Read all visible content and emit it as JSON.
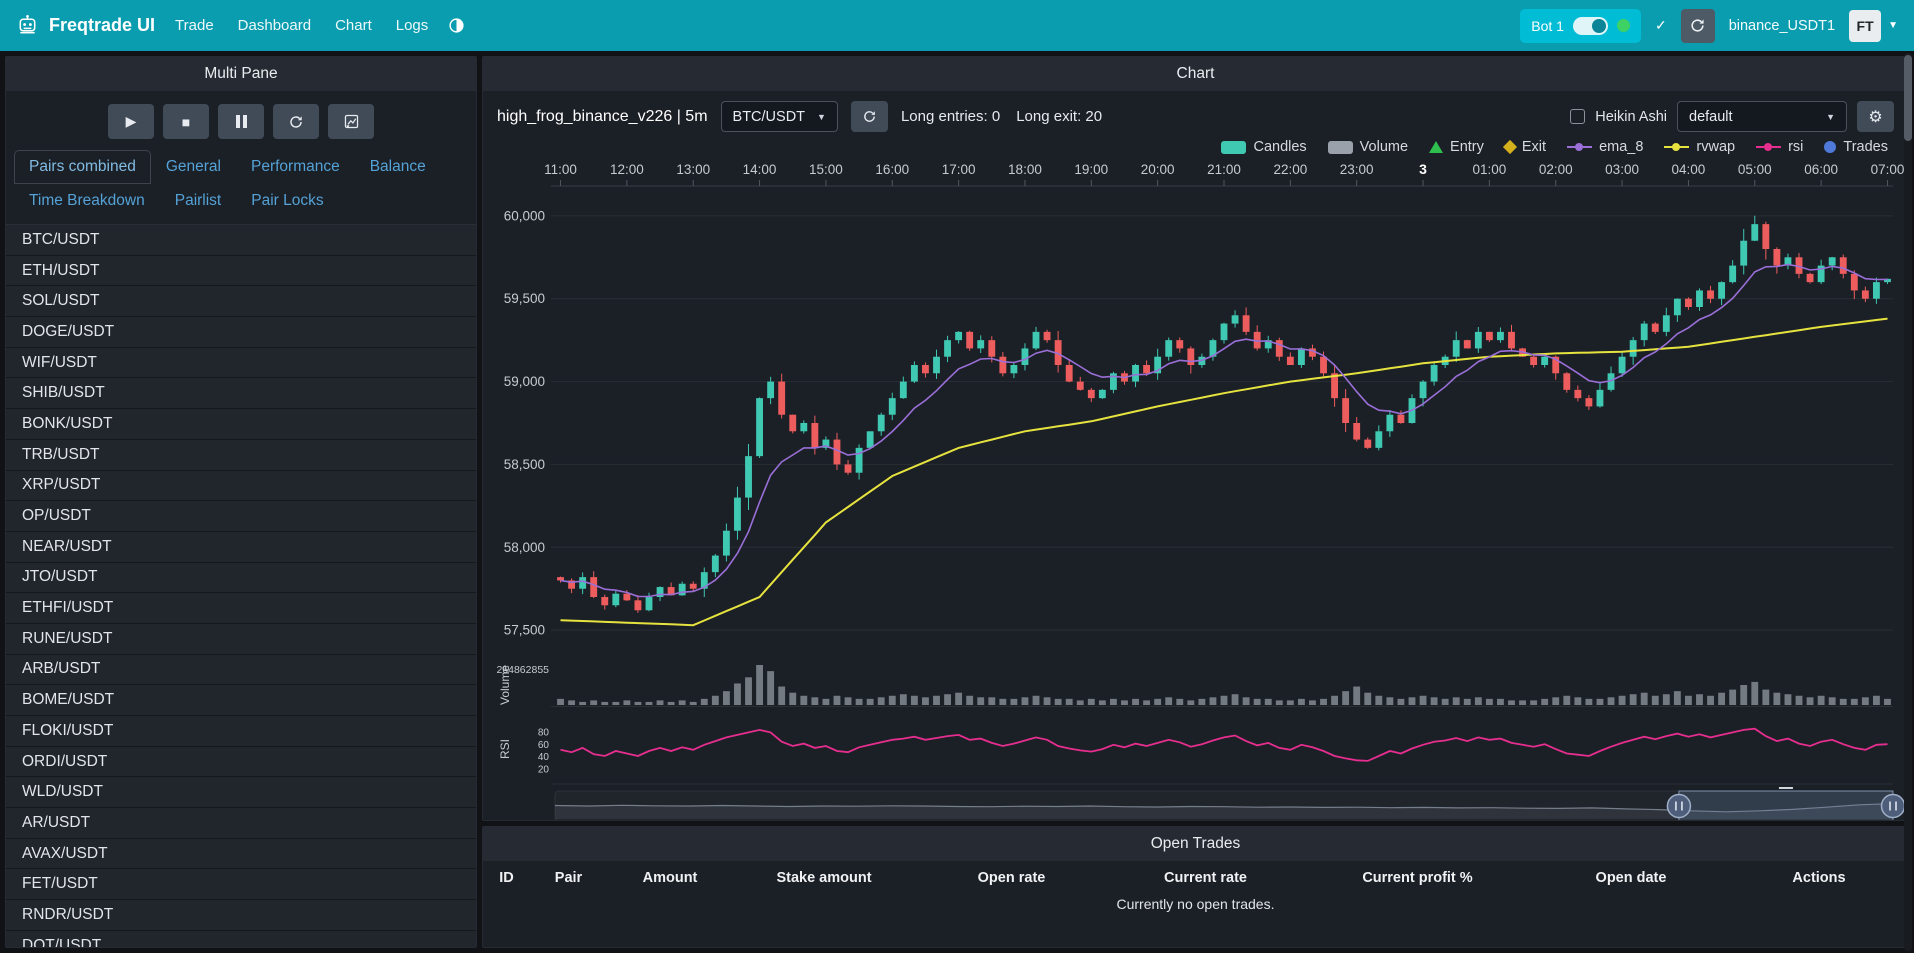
{
  "colors": {
    "navbar": "#0a9daf",
    "accent": "#00bcd4",
    "up": "#3fc8b2",
    "down": "#ee5d5d",
    "rvwap": "#e6e33f",
    "ema": "#9a6fd8",
    "rsi": "#e62e8f",
    "volume": "#9aa1aa",
    "grid": "#2a2e35",
    "axis_text": "#c6cbd1",
    "trades": "#4f7ad9",
    "entry": "#2fbf4f",
    "exit": "#d4b01c"
  },
  "icons": {
    "play": "▶",
    "stop": "■",
    "gear": "⚙",
    "check": "✓",
    "caret": "▼",
    "select_caret": "▼"
  },
  "navbar": {
    "brand": "Freqtrade UI",
    "items": [
      "Trade",
      "Dashboard",
      "Chart",
      "Logs"
    ],
    "bot_name": "Bot 1",
    "exchange_label": "binance_USDT1",
    "avatar_label": "FT"
  },
  "left_panel": {
    "title": "Multi Pane",
    "tabs_row1": [
      "Pairs combined",
      "General",
      "Performance",
      "Balance"
    ],
    "tabs_row2": [
      "Time Breakdown",
      "Pairlist",
      "Pair Locks"
    ],
    "active_tab": "Pairs combined",
    "pairs": [
      "BTC/USDT",
      "ETH/USDT",
      "SOL/USDT",
      "DOGE/USDT",
      "WIF/USDT",
      "SHIB/USDT",
      "BONK/USDT",
      "TRB/USDT",
      "XRP/USDT",
      "OP/USDT",
      "NEAR/USDT",
      "JTO/USDT",
      "ETHFI/USDT",
      "RUNE/USDT",
      "ARB/USDT",
      "BOME/USDT",
      "FLOKI/USDT",
      "ORDI/USDT",
      "WLD/USDT",
      "AR/USDT",
      "AVAX/USDT",
      "FET/USDT",
      "RNDR/USDT",
      "DOT/USDT"
    ]
  },
  "chart_panel": {
    "title": "Chart",
    "strategy_label": "high_frog_binance_v226 | 5m",
    "pair_select_value": "BTC/USDT",
    "entries_label": "Long entries: 0",
    "exit_label": "Long exit: 20",
    "heikin_label": "Heikin Ashi",
    "plot_select_value": "default",
    "legend": [
      {
        "label": "Candles",
        "type": "rect",
        "color": "#3fc8b2"
      },
      {
        "label": "Volume",
        "type": "rect",
        "color": "#9aa1aa"
      },
      {
        "label": "Entry",
        "type": "triangle",
        "color": "#2fbf4f"
      },
      {
        "label": "Exit",
        "type": "diamond",
        "color": "#d4b01c"
      },
      {
        "label": "ema_8",
        "type": "line-dot",
        "color": "#9a6fd8"
      },
      {
        "label": "rvwap",
        "type": "line-dot",
        "color": "#e6e33f"
      },
      {
        "label": "rsi",
        "type": "line-dot",
        "color": "#e62e8f"
      },
      {
        "label": "Trades",
        "type": "circle",
        "color": "#4f7ad9"
      }
    ]
  },
  "chart_data": {
    "type": "candlestick",
    "pair": "BTC/USDT",
    "timeframe": "5m",
    "interval_minutes": 10,
    "x_labels": [
      "11:00",
      "12:00",
      "13:00",
      "14:00",
      "15:00",
      "16:00",
      "17:00",
      "18:00",
      "19:00",
      "20:00",
      "21:00",
      "22:00",
      "23:00",
      "3",
      "01:00",
      "02:00",
      "03:00",
      "04:00",
      "05:00",
      "06:00",
      "07:00"
    ],
    "ylim": [
      57350,
      60150
    ],
    "y_ticks": [
      {
        "v": 60000,
        "label": "60,000"
      },
      {
        "v": 59500,
        "label": "59,500"
      },
      {
        "v": 59000,
        "label": "59,000"
      },
      {
        "v": 58500,
        "label": "58,500"
      },
      {
        "v": 58000,
        "label": "58,000"
      },
      {
        "v": 57500,
        "label": "57,500"
      }
    ],
    "open_start": 57820,
    "closes": [
      57800,
      57750,
      57820,
      57700,
      57650,
      57720,
      57680,
      57620,
      57700,
      57760,
      57710,
      57780,
      57750,
      57850,
      57950,
      58100,
      58300,
      58550,
      58900,
      59000,
      58800,
      58700,
      58750,
      58600,
      58650,
      58500,
      58450,
      58600,
      58700,
      58800,
      58900,
      59000,
      59100,
      59050,
      59150,
      59250,
      59300,
      59200,
      59250,
      59150,
      59050,
      59100,
      59200,
      59300,
      59250,
      59100,
      59000,
      58950,
      58900,
      58950,
      59050,
      59000,
      59100,
      59050,
      59150,
      59250,
      59200,
      59100,
      59150,
      59250,
      59350,
      59400,
      59300,
      59200,
      59250,
      59150,
      59100,
      59200,
      59150,
      59050,
      58900,
      58750,
      58650,
      58600,
      58700,
      58800,
      58750,
      58900,
      59000,
      59100,
      59150,
      59250,
      59200,
      59300,
      59250,
      59300,
      59200,
      59150,
      59100,
      59150,
      59050,
      58950,
      58900,
      58850,
      58950,
      59050,
      59150,
      59250,
      59350,
      59300,
      59400,
      59500,
      59450,
      59550,
      59500,
      59600,
      59700,
      59850,
      59950,
      59800,
      59700,
      59750,
      59650,
      59600,
      59700,
      59750,
      59650,
      59550,
      59500,
      59600,
      59620
    ],
    "volumes_m": [
      4,
      3,
      2,
      3,
      2,
      2,
      3,
      2,
      2,
      3,
      2,
      3,
      2,
      4,
      6,
      9,
      14,
      18,
      26,
      22,
      12,
      8,
      6,
      5,
      4,
      6,
      5,
      4,
      4,
      5,
      6,
      7,
      6,
      5,
      6,
      7,
      8,
      6,
      5,
      5,
      4,
      4,
      5,
      6,
      5,
      4,
      4,
      3,
      4,
      3,
      4,
      3,
      4,
      3,
      4,
      5,
      4,
      3,
      4,
      5,
      6,
      7,
      5,
      4,
      4,
      3,
      3,
      4,
      3,
      4,
      6,
      9,
      12,
      8,
      6,
      5,
      4,
      5,
      6,
      5,
      4,
      5,
      4,
      5,
      4,
      4,
      3,
      3,
      3,
      4,
      5,
      6,
      5,
      4,
      4,
      5,
      6,
      7,
      8,
      6,
      7,
      9,
      6,
      7,
      6,
      8,
      10,
      13,
      15,
      10,
      8,
      7,
      6,
      5,
      6,
      5,
      4,
      4,
      5,
      6,
      4
    ],
    "rsi": [
      52,
      48,
      55,
      45,
      42,
      50,
      46,
      42,
      50,
      55,
      50,
      56,
      52,
      60,
      66,
      72,
      76,
      80,
      84,
      80,
      65,
      58,
      62,
      55,
      58,
      50,
      48,
      56,
      60,
      64,
      68,
      70,
      73,
      68,
      71,
      74,
      76,
      68,
      70,
      63,
      58,
      62,
      67,
      72,
      68,
      58,
      54,
      51,
      49,
      53,
      60,
      56,
      62,
      58,
      63,
      68,
      64,
      57,
      61,
      67,
      72,
      75,
      66,
      59,
      63,
      55,
      52,
      60,
      56,
      50,
      42,
      38,
      35,
      34,
      42,
      50,
      46,
      54,
      60,
      65,
      67,
      71,
      66,
      72,
      68,
      70,
      63,
      60,
      57,
      61,
      53,
      46,
      44,
      42,
      50,
      57,
      63,
      68,
      73,
      69,
      74,
      78,
      73,
      77,
      72,
      76,
      80,
      84,
      86,
      74,
      66,
      70,
      62,
      58,
      65,
      68,
      61,
      55,
      52,
      60,
      61
    ],
    "rvwap_hourly": [
      57560,
      57545,
      57530,
      57700,
      58150,
      58430,
      58600,
      58700,
      58760,
      58850,
      58930,
      59000,
      59050,
      59110,
      59150,
      59170,
      59180,
      59210,
      59270,
      59330,
      59380
    ],
    "ema_period": 8,
    "volume_axis_label": "264862855",
    "volume_axis_title": "Volume",
    "rsi_axis_title": "RSI",
    "rsi_ticks": [
      80,
      60,
      40,
      20
    ],
    "navigator": {
      "values": [
        0.52,
        0.5,
        0.53,
        0.51,
        0.5,
        0.52,
        0.5,
        0.48,
        0.5,
        0.49,
        0.51,
        0.5,
        0.48,
        0.47,
        0.49,
        0.48,
        0.5,
        0.47,
        0.46,
        0.48,
        0.47,
        0.45,
        0.46,
        0.44,
        0.45,
        0.43,
        0.44,
        0.42,
        0.43,
        0.41,
        0.4,
        0.42,
        0.38,
        0.35,
        0.3,
        0.26,
        0.3,
        0.36,
        0.45,
        0.55,
        0.6
      ],
      "window": [
        0.84,
        1.0
      ]
    }
  },
  "open_trades": {
    "title": "Open Trades",
    "columns": [
      "ID",
      "Pair",
      "Amount",
      "Stake amount",
      "Open rate",
      "Current rate",
      "Current profit %",
      "Open date",
      "Actions"
    ],
    "empty_text": "Currently no open trades."
  }
}
